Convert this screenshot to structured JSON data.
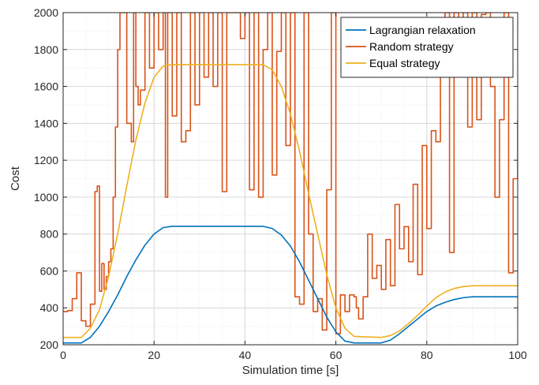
{
  "chart_data": {
    "type": "line",
    "title": "",
    "xlabel": "Simulation time [s]",
    "ylabel": "Cost",
    "xlim": [
      0,
      100
    ],
    "ylim": [
      200,
      2000
    ],
    "xticks": [
      0,
      20,
      40,
      60,
      80,
      100
    ],
    "yticks": [
      200,
      400,
      600,
      800,
      1000,
      1200,
      1400,
      1600,
      1800,
      2000
    ],
    "grid": true,
    "minor_grid": true,
    "legend_position": "top-right",
    "series": [
      {
        "name": "Lagrangian relaxation",
        "color": "#0072BD",
        "step": false,
        "x": [
          0,
          4,
          6,
          8,
          10,
          12,
          14,
          16,
          18,
          20,
          22,
          24,
          30,
          40,
          44,
          46,
          48,
          50,
          52,
          54,
          56,
          58,
          60,
          62,
          64,
          70,
          72,
          74,
          76,
          78,
          80,
          82,
          84,
          86,
          88,
          90,
          95,
          100
        ],
        "y": [
          210,
          210,
          240,
          300,
          380,
          470,
          570,
          660,
          740,
          800,
          835,
          842,
          842,
          842,
          842,
          830,
          795,
          735,
          650,
          550,
          450,
          350,
          270,
          220,
          210,
          210,
          225,
          260,
          300,
          340,
          380,
          410,
          430,
          445,
          455,
          460,
          460,
          460
        ]
      },
      {
        "name": "Random strategy",
        "color": "#D95319",
        "step": true,
        "x": [
          0,
          1,
          2,
          3,
          4,
          5,
          6,
          7,
          7.5,
          8,
          8.5,
          9,
          9.5,
          10,
          10.5,
          11,
          11.5,
          12,
          12.5,
          13,
          13.5,
          14,
          15,
          15.5,
          16,
          16.5,
          17,
          18,
          19,
          20,
          21,
          22,
          22.5,
          23,
          24,
          25,
          26,
          27,
          28,
          29,
          30,
          31,
          32,
          33,
          34,
          35,
          36,
          37,
          38,
          39,
          40,
          41,
          42,
          43,
          44,
          45,
          46,
          47,
          48,
          49,
          50,
          51,
          52,
          53,
          54,
          55,
          56,
          57,
          58,
          59,
          60,
          61,
          62,
          63,
          64,
          64.5,
          65,
          66,
          67,
          68,
          69,
          70,
          71,
          72,
          73,
          74,
          75,
          76,
          77,
          78,
          79,
          80,
          81,
          82,
          83,
          84,
          85,
          86,
          87,
          88,
          89,
          90,
          91,
          92,
          93,
          94,
          95,
          96,
          97,
          98,
          99,
          100
        ],
        "y": [
          380,
          385,
          450,
          590,
          330,
          300,
          420,
          1030,
          1060,
          490,
          640,
          500,
          570,
          650,
          720,
          1000,
          1380,
          1800,
          2000,
          2000,
          2000,
          1400,
          1300,
          2000,
          1600,
          1500,
          1580,
          2000,
          1700,
          2000,
          1800,
          2000,
          1000,
          2000,
          1440,
          2000,
          1300,
          1360,
          2000,
          1500,
          2000,
          1650,
          2000,
          1600,
          2000,
          1030,
          2000,
          2000,
          2000,
          1860,
          2000,
          1040,
          2000,
          1000,
          1800,
          2000,
          1120,
          1790,
          2000,
          1280,
          2000,
          460,
          420,
          2000,
          800,
          380,
          450,
          280,
          1040,
          2000,
          260,
          470,
          380,
          470,
          460,
          400,
          340,
          460,
          800,
          560,
          630,
          500,
          770,
          520,
          960,
          720,
          840,
          650,
          1070,
          580,
          1280,
          830,
          1360,
          1300,
          1800,
          2000,
          700,
          2000,
          1890,
          2000,
          1380,
          2000,
          1420,
          1990,
          2000,
          1600,
          1000,
          1420,
          2000,
          590,
          1100,
          1420
        ],
        "color_note": ""
      },
      {
        "name": "Equal strategy",
        "color": "#EDB120",
        "step": false,
        "x": [
          0,
          4,
          6,
          8,
          10,
          12,
          14,
          16,
          18,
          20,
          22,
          24,
          30,
          40,
          44,
          46,
          48,
          50,
          52,
          54,
          56,
          58,
          60,
          62,
          64,
          70,
          72,
          74,
          76,
          78,
          80,
          82,
          84,
          86,
          88,
          90,
          95,
          100
        ],
        "y": [
          240,
          240,
          290,
          390,
          570,
          800,
          1060,
          1310,
          1510,
          1650,
          1710,
          1718,
          1718,
          1718,
          1718,
          1690,
          1600,
          1450,
          1250,
          1020,
          800,
          580,
          400,
          290,
          245,
          240,
          250,
          275,
          315,
          360,
          410,
          455,
          485,
          505,
          515,
          520,
          520,
          520
        ]
      }
    ]
  }
}
